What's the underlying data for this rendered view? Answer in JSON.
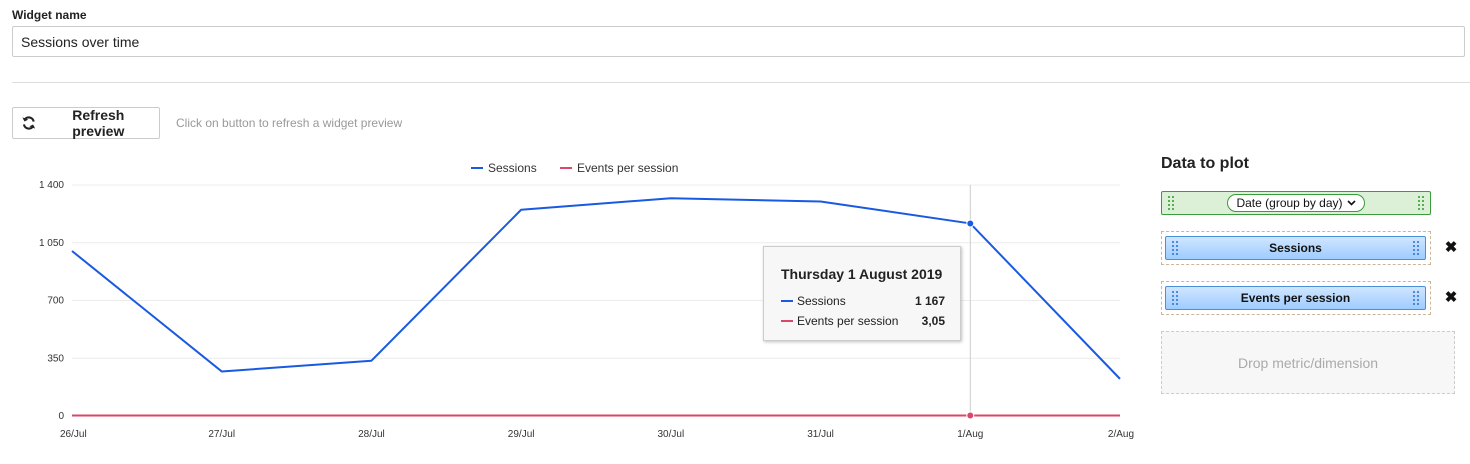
{
  "form": {
    "widget_name_label": "Widget name",
    "widget_name_value": "Sessions over time"
  },
  "preview": {
    "refresh_label": "Refresh preview",
    "refresh_hint": "Click on button to refresh a widget preview"
  },
  "chart_data": {
    "type": "line",
    "categories": [
      "26/Jul",
      "27/Jul",
      "28/Jul",
      "29/Jul",
      "30/Jul",
      "31/Jul",
      "1/Aug",
      "2/Aug"
    ],
    "series": [
      {
        "name": "Sessions",
        "color": "#1a5ae0",
        "values": [
          1000,
          270,
          335,
          1250,
          1320,
          1300,
          1167,
          225
        ]
      },
      {
        "name": "Events per session",
        "color": "#d9476a",
        "values": [
          3.1,
          3.0,
          3.0,
          3.1,
          3.0,
          3.0,
          3.05,
          3.0
        ]
      }
    ],
    "ylim": [
      0,
      1400
    ],
    "yticks": [
      "0",
      "350",
      "700",
      "1 050",
      "1 400"
    ],
    "ytick_values": [
      0,
      350,
      700,
      1050,
      1400
    ],
    "grid": true,
    "legend": "top-center",
    "highlight_index": 6
  },
  "tooltip": {
    "title": "Thursday 1 August 2019",
    "rows": [
      {
        "name": "Sessions",
        "value": "1 167"
      },
      {
        "name": "Events per session",
        "value": "3,05"
      }
    ]
  },
  "data_to_plot": {
    "title": "Data to plot",
    "dimension": "Date (group by day)",
    "metrics": [
      "Sessions",
      "Events per session"
    ],
    "remove_label": "✖",
    "drop_zone": "Drop metric/dimension",
    "colors": {
      "dimension": "#dcf0d8",
      "metric": "#9fccff"
    }
  }
}
